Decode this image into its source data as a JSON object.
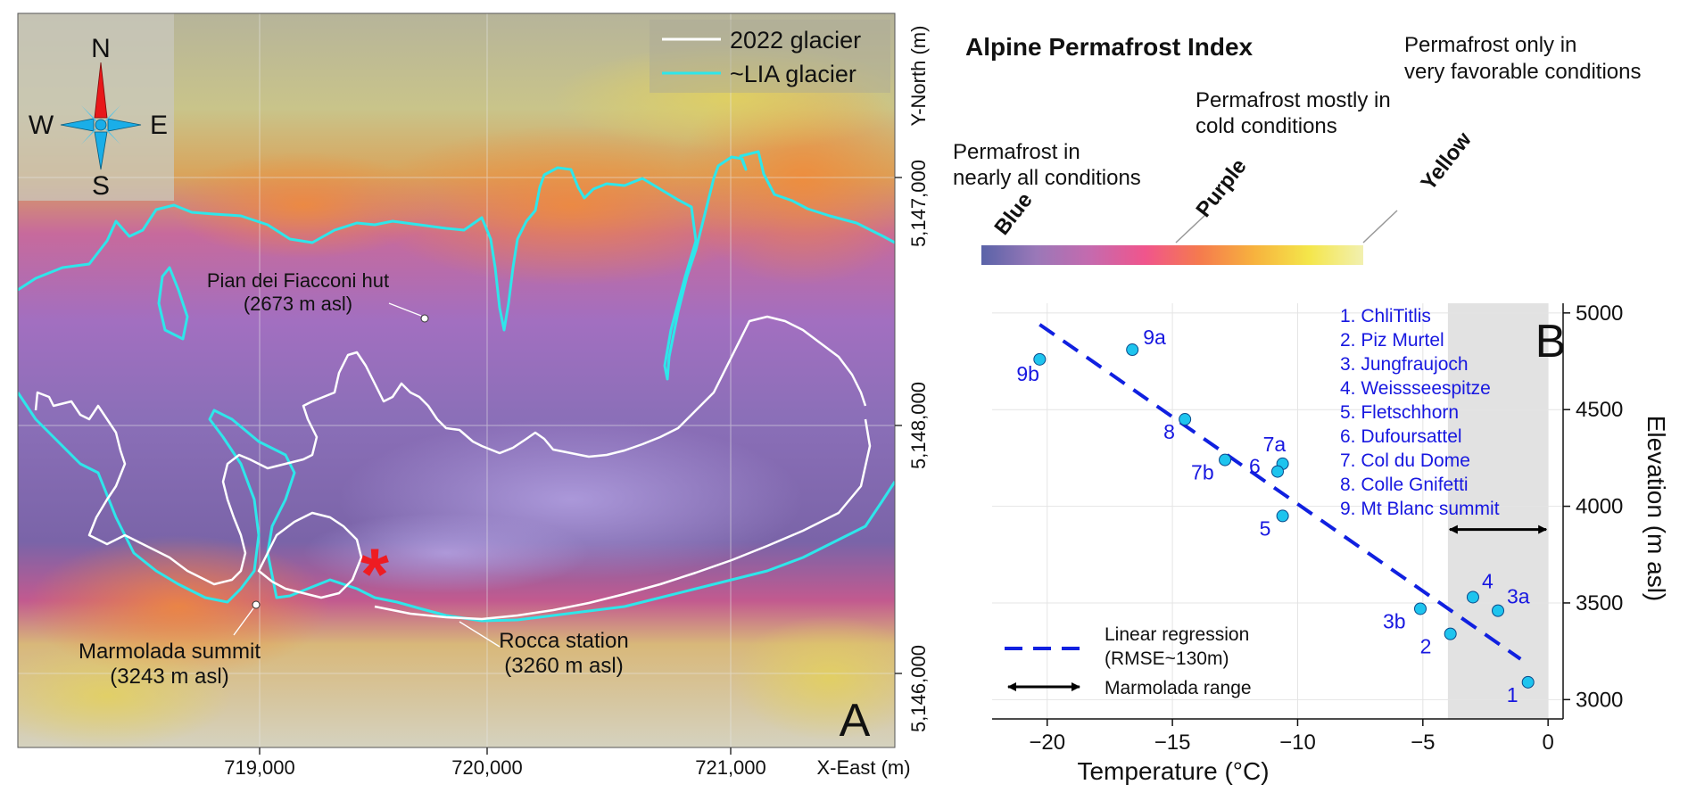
{
  "panel_a": {
    "letter": "A",
    "legend": [
      {
        "label": "2022 glacier",
        "color": "#ffffff"
      },
      {
        "label": "~LIA glacier",
        "color": "#2ee6ea"
      }
    ],
    "compass": {
      "n": "N",
      "s": "S",
      "e": "E",
      "w": "W"
    },
    "annotations": {
      "hut_name": "Pian dei Fiacconi hut",
      "hut_elev": "(2673 m asl)",
      "summit_name": "Marmolada summit",
      "summit_elev": "(3243 m asl)",
      "rocca_name": "Rocca station",
      "rocca_elev": "(3260 m asl)",
      "star": "*"
    },
    "x_axis": {
      "label": "X-East (m)",
      "ticks": [
        "719,000",
        "720,000",
        "721,000"
      ]
    },
    "y_axis": {
      "label": "Y-North (m)",
      "ticks": [
        "5,147,000",
        "5,148,000",
        "5,146,000"
      ]
    }
  },
  "colorbar": {
    "title": "Alpine Permafrost Index",
    "labels": [
      {
        "name": "Blue",
        "desc1": "Permafrost in",
        "desc2": "nearly all conditions"
      },
      {
        "name": "Purple",
        "desc1": "Permafrost mostly in",
        "desc2": "cold conditions"
      },
      {
        "name": "Yellow",
        "desc1": "Permafrost only in",
        "desc2": "very favorable conditions"
      }
    ],
    "stops": [
      "#5a63a8",
      "#9a78b8",
      "#c56aae",
      "#f0558c",
      "#f57a4e",
      "#f7b23e",
      "#f4e64a",
      "#f2f0b0"
    ]
  },
  "panel_b": {
    "letter": "B",
    "sites": [
      "1. ChliTitlis",
      "2. Piz Murtel",
      "3. Jungfraujoch",
      "4. Weissseespitze",
      "5. Fletschhorn",
      "6. Dufoursattel",
      "7. Col du Dome",
      "8. Colle Gnifetti",
      "9. Mt Blanc summit"
    ],
    "legend": {
      "regression": "Linear regression",
      "rmse": "(RMSE~130m)",
      "range": "Marmolada range"
    }
  },
  "chart_data": {
    "type": "scatter",
    "xlabel": "Temperature (°C)",
    "ylabel": "Elevation (m asl)",
    "xlim": [
      -22.2,
      0.6
    ],
    "ylim": [
      2900,
      5050
    ],
    "xticks": [
      -20,
      -15,
      -10,
      -5,
      0
    ],
    "yticks": [
      3000,
      3500,
      4000,
      4500,
      5000
    ],
    "points": [
      {
        "label": "9b",
        "x": -20.3,
        "y": 4760
      },
      {
        "label": "9a",
        "x": -16.6,
        "y": 4810
      },
      {
        "label": "8",
        "x": -14.5,
        "y": 4450
      },
      {
        "label": "7b",
        "x": -12.9,
        "y": 4240
      },
      {
        "label": "7a",
        "x": -10.6,
        "y": 4220
      },
      {
        "label": "6",
        "x": -10.8,
        "y": 4180
      },
      {
        "label": "5",
        "x": -10.6,
        "y": 3950
      },
      {
        "label": "3b",
        "x": -5.1,
        "y": 3470
      },
      {
        "label": "2",
        "x": -3.9,
        "y": 3340
      },
      {
        "label": "4",
        "x": -3.0,
        "y": 3530
      },
      {
        "label": "3a",
        "x": -2.0,
        "y": 3460
      },
      {
        "label": "1",
        "x": -0.8,
        "y": 3090
      }
    ],
    "regression": {
      "x": [
        -20.3,
        -1.1
      ],
      "y": [
        4940,
        3210
      ]
    },
    "marmolada_range": {
      "x": [
        -4,
        0
      ],
      "y_arrow": 3880
    },
    "point_color": "#1ec4ee",
    "line_color": "#1020e0"
  }
}
